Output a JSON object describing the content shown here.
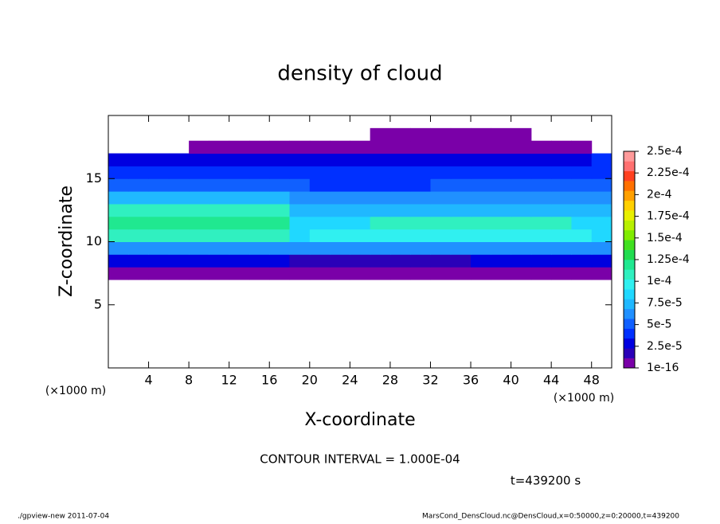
{
  "chart_data": {
    "type": "heatmap",
    "title": "density of cloud",
    "x_label": "X-coordinate",
    "y_label": "Z-coordinate",
    "x_unit": "(×1000 m)",
    "contour_note": "CONTOUR INTERVAL = 1.000E-04",
    "time_note": "t=439200 s",
    "footer_left": "./gpview-new  2011-07-04",
    "footer_right": "MarsCond_DensCloud.nc@DensCloud,x=0:50000,z=0:20000,t=439200",
    "xlim": [
      0,
      50
    ],
    "xticks": [
      4,
      8,
      12,
      16,
      20,
      24,
      28,
      32,
      36,
      40,
      44,
      48
    ],
    "ylim": [
      0,
      20
    ],
    "yticks": [
      5,
      10,
      15
    ],
    "x": [
      1,
      3,
      5,
      7,
      9,
      11,
      13,
      15,
      17,
      19,
      21,
      23,
      25,
      27,
      29,
      31,
      33,
      35,
      37,
      39,
      41,
      43,
      45,
      47,
      49
    ],
    "y": [
      0.5,
      1.5,
      2.5,
      3.5,
      4.5,
      5.5,
      6.5,
      7.5,
      8.5,
      9.5,
      10.5,
      11.5,
      12.5,
      13.5,
      14.5,
      15.5,
      16.5,
      17.5,
      18.5,
      19.5
    ],
    "values": [
      [
        null,
        null,
        null,
        null,
        null,
        null,
        null,
        null,
        null,
        null,
        null,
        null,
        null,
        null,
        null,
        null,
        null,
        null,
        null,
        null,
        null,
        null,
        null,
        null,
        null
      ],
      [
        null,
        null,
        null,
        null,
        null,
        null,
        null,
        null,
        null,
        null,
        null,
        null,
        null,
        null,
        null,
        null,
        null,
        null,
        null,
        null,
        null,
        null,
        null,
        null,
        null
      ],
      [
        null,
        null,
        null,
        null,
        null,
        null,
        null,
        null,
        null,
        null,
        null,
        null,
        null,
        null,
        null,
        null,
        null,
        null,
        null,
        null,
        null,
        null,
        null,
        null,
        null
      ],
      [
        null,
        null,
        null,
        null,
        null,
        null,
        null,
        null,
        null,
        null,
        null,
        null,
        null,
        null,
        null,
        null,
        null,
        null,
        null,
        null,
        null,
        null,
        null,
        null,
        null
      ],
      [
        null,
        null,
        null,
        null,
        null,
        null,
        null,
        null,
        null,
        null,
        null,
        null,
        null,
        null,
        null,
        null,
        null,
        null,
        null,
        null,
        null,
        null,
        null,
        null,
        null
      ],
      [
        null,
        null,
        null,
        null,
        null,
        null,
        null,
        null,
        null,
        null,
        null,
        null,
        null,
        null,
        null,
        null,
        null,
        null,
        null,
        null,
        null,
        null,
        null,
        null,
        null
      ],
      [
        null,
        null,
        null,
        null,
        null,
        null,
        null,
        null,
        null,
        null,
        null,
        null,
        null,
        null,
        null,
        null,
        null,
        null,
        null,
        null,
        null,
        null,
        null,
        null,
        null
      ],
      [
        5e-06,
        5e-06,
        5e-06,
        5e-06,
        5e-06,
        5e-06,
        5e-06,
        5e-06,
        5e-06,
        5e-06,
        5e-06,
        5e-06,
        5e-06,
        5e-06,
        5e-06,
        5e-06,
        5e-06,
        5e-06,
        5e-06,
        5e-06,
        5e-06,
        5e-06,
        5e-06,
        5e-06,
        5e-06
      ],
      [
        2.5e-05,
        2.5e-05,
        2.5e-05,
        2.5e-05,
        2.5e-05,
        2.5e-05,
        2.5e-05,
        2.5e-05,
        2.5e-05,
        2e-05,
        2e-05,
        2e-05,
        2e-05,
        2e-05,
        2e-05,
        2e-05,
        2e-05,
        2e-05,
        2.5e-05,
        2.5e-05,
        2.5e-05,
        2.5e-05,
        2.5e-05,
        2.5e-05,
        2.5e-05
      ],
      [
        6e-05,
        6e-05,
        6e-05,
        6e-05,
        6e-05,
        6e-05,
        6e-05,
        6e-05,
        6e-05,
        6e-05,
        6e-05,
        6e-05,
        6e-05,
        6e-05,
        6e-05,
        6e-05,
        6e-05,
        6e-05,
        6e-05,
        6e-05,
        6e-05,
        6e-05,
        6e-05,
        6e-05,
        6e-05
      ],
      [
        0.000105,
        0.000105,
        0.000105,
        0.000105,
        0.000105,
        0.000105,
        0.000105,
        0.000105,
        0.000105,
        8e-05,
        0.000102,
        0.000102,
        0.000102,
        0.000102,
        0.000102,
        0.000102,
        0.000102,
        0.000102,
        0.000102,
        0.000102,
        0.000102,
        0.000102,
        0.000102,
        0.000102,
        9e-05
      ],
      [
        0.000115,
        0.000115,
        0.000115,
        0.000115,
        0.000115,
        0.000115,
        0.000115,
        0.000115,
        0.000115,
        8e-05,
        8e-05,
        8e-05,
        8e-05,
        0.000105,
        0.000105,
        0.000105,
        0.000105,
        0.000105,
        0.000105,
        0.000105,
        0.000105,
        0.000105,
        0.000105,
        9e-05,
        9e-05
      ],
      [
        0.000105,
        0.000105,
        0.000105,
        0.000105,
        0.000105,
        0.000105,
        0.000105,
        0.000105,
        0.000105,
        7e-05,
        7e-05,
        7e-05,
        7e-05,
        7e-05,
        7e-05,
        7e-05,
        7e-05,
        7e-05,
        7e-05,
        7e-05,
        7e-05,
        7e-05,
        7e-05,
        7e-05,
        7e-05
      ],
      [
        7.5e-05,
        7.5e-05,
        7.5e-05,
        7.5e-05,
        7.5e-05,
        7.5e-05,
        7.5e-05,
        7.5e-05,
        7.5e-05,
        6e-05,
        6e-05,
        6e-05,
        6e-05,
        6e-05,
        6e-05,
        6e-05,
        6e-05,
        6e-05,
        6e-05,
        6e-05,
        6e-05,
        6e-05,
        6e-05,
        6e-05,
        6e-05
      ],
      [
        5e-05,
        5e-05,
        5e-05,
        5e-05,
        5e-05,
        5e-05,
        5e-05,
        5e-05,
        5e-05,
        5e-05,
        4e-05,
        4e-05,
        4e-05,
        4e-05,
        4e-05,
        4e-05,
        5e-05,
        5e-05,
        5e-05,
        5e-05,
        5e-05,
        5e-05,
        5e-05,
        5e-05,
        5e-05
      ],
      [
        3.5e-05,
        3.5e-05,
        3.5e-05,
        3.5e-05,
        3.5e-05,
        4.5e-05,
        4.5e-05,
        4.5e-05,
        4.5e-05,
        4.5e-05,
        4.5e-05,
        4.5e-05,
        4.5e-05,
        4.5e-05,
        4.5e-05,
        4.5e-05,
        4.5e-05,
        4.5e-05,
        4.5e-05,
        4.5e-05,
        4.5e-05,
        4.5e-05,
        4.5e-05,
        4.5e-05,
        4.5e-05
      ],
      [
        3e-05,
        3e-05,
        3e-05,
        3e-05,
        3e-05,
        3e-05,
        3e-05,
        3e-05,
        3e-05,
        3e-05,
        3e-05,
        3e-05,
        3e-05,
        3e-05,
        3e-05,
        3e-05,
        3e-05,
        3e-05,
        3e-05,
        3e-05,
        3e-05,
        3e-05,
        3e-05,
        3e-05,
        4e-05
      ],
      [
        null,
        null,
        null,
        null,
        5e-06,
        5e-06,
        5e-06,
        5e-06,
        5e-06,
        5e-06,
        5e-06,
        5e-06,
        5e-06,
        5e-06,
        5e-06,
        5e-06,
        5e-06,
        5e-06,
        5e-06,
        5e-06,
        5e-06,
        5e-06,
        5e-06,
        5e-06,
        null
      ],
      [
        null,
        null,
        null,
        null,
        null,
        null,
        null,
        null,
        null,
        null,
        null,
        null,
        null,
        5e-06,
        5e-06,
        5e-06,
        5e-06,
        5e-06,
        5e-06,
        5e-06,
        5e-06,
        null,
        null,
        null,
        null
      ],
      [
        null,
        null,
        null,
        null,
        null,
        null,
        null,
        null,
        null,
        null,
        null,
        null,
        null,
        null,
        null,
        null,
        null,
        null,
        null,
        null,
        null,
        null,
        null,
        null,
        null
      ]
    ],
    "colorbar_lim": [
      1e-16,
      0.00025
    ],
    "colorbar_ticks": [
      {
        "value": 1e-16,
        "label": "1e-16"
      },
      {
        "value": 2.5e-05,
        "label": "2.5e-5"
      },
      {
        "value": 5e-05,
        "label": "5e-5"
      },
      {
        "value": 7.5e-05,
        "label": "7.5e-5"
      },
      {
        "value": 0.0001,
        "label": "1e-4"
      },
      {
        "value": 0.000125,
        "label": "1.25e-4"
      },
      {
        "value": 0.00015,
        "label": "1.5e-4"
      },
      {
        "value": 0.000175,
        "label": "1.75e-4"
      },
      {
        "value": 0.0002,
        "label": "2e-4"
      },
      {
        "value": 0.000225,
        "label": "2.25e-4"
      },
      {
        "value": 0.00025,
        "label": "2.5e-4"
      }
    ],
    "colors": [
      "#7a00a8",
      "#2a00b8",
      "#0000e0",
      "#0030ff",
      "#1060ff",
      "#2090ff",
      "#20b8ff",
      "#20d8ff",
      "#30f0f0",
      "#30f0c0",
      "#20e890",
      "#20dc50",
      "#40e020",
      "#80ec00",
      "#b8f000",
      "#e8f000",
      "#ffd000",
      "#ffa000",
      "#ff7000",
      "#ff4020",
      "#ff7070",
      "#ff9a9a"
    ]
  }
}
